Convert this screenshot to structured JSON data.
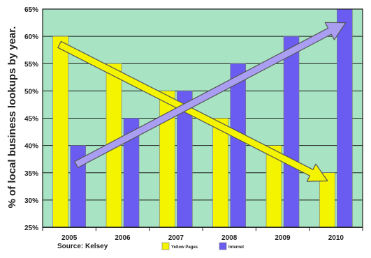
{
  "chart_data": {
    "type": "bar",
    "categories": [
      "2005",
      "2006",
      "2007",
      "2008",
      "2009",
      "2010"
    ],
    "series": [
      {
        "name": "Yellow Pages",
        "color": "#f4f400",
        "values": [
          60,
          55,
          50,
          45,
          40,
          35
        ]
      },
      {
        "name": "Internet",
        "color": "#6a5cf0",
        "values": [
          40,
          45,
          50,
          55,
          60,
          65
        ]
      }
    ],
    "ylabel": "% of local business lookups by year.",
    "ylim": [
      25,
      65
    ],
    "ytick_values": [
      25,
      30,
      35,
      40,
      45,
      50,
      55,
      60,
      65
    ],
    "ytick_labels": [
      "25%",
      "30%",
      "35%",
      "40%",
      "45%",
      "50%",
      "55%",
      "60%",
      "65%"
    ],
    "grid": true,
    "legend_position": "bottom",
    "plot_background": "#a8e4c4",
    "trend_arrows": [
      {
        "series": "Yellow Pages",
        "from_category": "2005",
        "to_category": "2010",
        "from_value": 58.5,
        "to_value": 33.5,
        "color": "#f4f400"
      },
      {
        "series": "Internet",
        "from_category": "2005",
        "to_category": "2010",
        "from_value": 36.5,
        "to_value": 62.5,
        "color": "#a99ef2"
      }
    ],
    "source": "Source: Kelsey"
  }
}
